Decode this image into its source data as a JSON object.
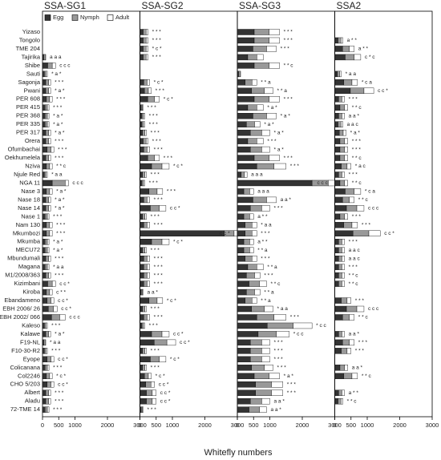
{
  "chart_data": {
    "type": "stacked-barh",
    "xlabel": "Whitefly numbers",
    "xlim": [
      0,
      3000
    ],
    "xticks": [
      0,
      500,
      1000,
      2000,
      3000
    ],
    "legend": [
      {
        "name": "Egg",
        "color": "#333333"
      },
      {
        "name": "Nymph",
        "color": "#999999"
      },
      {
        "name": "Adult",
        "color": "#ffffff"
      }
    ],
    "categories": [
      "Yizaso",
      "Tongolo",
      "TME 204",
      "Tajirika",
      "Shibe",
      "Sauti",
      "Sagonja",
      "Pwani",
      "PER 608",
      "PER 415",
      "PER 368",
      "PER 335",
      "PER 317",
      "Orera",
      "Ofumbachai",
      "Oekhumelela",
      "Nziva",
      "Njule Red",
      "NGA 11",
      "Nase 3",
      "Nase 18",
      "Nase 14",
      "Nase 1",
      "Nam 130",
      "Mkumbozi",
      "Mkumba",
      "MECU72",
      "Mbundumali",
      "Magana",
      "M1/2008/363",
      "Kizimbani",
      "Kiroba",
      "Ebandameno",
      "EBH 2006/ 26",
      "EBH 2002/ 066",
      "Kaleso",
      "Kalawe",
      "F19-NL",
      "F10-30-R2",
      "Eyope",
      "Colicanana",
      "Col2246",
      "CHO 5/203",
      "Albert",
      "Aladu",
      "72-TME 14"
    ],
    "panels": [
      {
        "title": "SSA-SG1",
        "series": [
          {
            "values": [
              0,
              0,
              0,
              40,
              160,
              60,
              100,
              100,
              120,
              80,
              80,
              80,
              100,
              100,
              140,
              100,
              120,
              60,
              300,
              120,
              100,
              100,
              80,
              120,
              120,
              80,
              80,
              100,
              80,
              100,
              160,
              120,
              140,
              180,
              280,
              60,
              100,
              40,
              60,
              140,
              80,
              120,
              140,
              100,
              100,
              80
            ]
          },
          {
            "values": [
              0,
              0,
              0,
              40,
              140,
              50,
              90,
              90,
              100,
              70,
              70,
              70,
              90,
              90,
              120,
              90,
              100,
              50,
              400,
              100,
              90,
              90,
              70,
              100,
              100,
              70,
              70,
              90,
              70,
              90,
              140,
              100,
              120,
              160,
              250,
              50,
              90,
              40,
              50,
              120,
              70,
              100,
              120,
              90,
              90,
              70
            ]
          },
          {
            "values": [
              0,
              0,
              0,
              20,
              100,
              40,
              60,
              60,
              80,
              50,
              50,
              50,
              60,
              60,
              90,
              60,
              80,
              40,
              100,
              80,
              60,
              60,
              50,
              80,
              80,
              50,
              50,
              60,
              50,
              60,
              100,
              80,
              90,
              110,
              170,
              40,
              60,
              20,
              40,
              90,
              50,
              80,
              90,
              60,
              60,
              50
            ]
          }
        ],
        "annotations": [
          null,
          null,
          null,
          "a a a",
          "c c c",
          "* a *",
          "* * *",
          "* a *",
          "* * *",
          "* * *",
          "* a *",
          "* a *",
          "* a *",
          "* * *",
          "* * *",
          "* * *",
          "* * c",
          "* a a",
          "c c c",
          "* a *",
          "* a *",
          "* a *",
          "* * *",
          "* * *",
          "* * *",
          "* a *",
          "* a *",
          "* * *",
          "* a a",
          "* * *",
          "c c *",
          "c * *",
          "c c *",
          "c c *",
          "c c c",
          "* * *",
          "* a *",
          "* a a",
          "* * *",
          "c c *",
          "* * *",
          "* c *",
          "c c *",
          "* * *",
          "* * *",
          "* * *"
        ]
      },
      {
        "title": "SSA-SG2",
        "series": [
          {
            "values": [
              100,
              100,
              100,
              100,
              0,
              0,
              120,
              140,
              240,
              40,
              60,
              60,
              80,
              100,
              120,
              240,
              360,
              80,
              60,
              280,
              120,
              320,
              80,
              120,
              2600,
              360,
              80,
              120,
              120,
              120,
              120,
              40,
              280,
              80,
              120,
              60,
              360,
              440,
              80,
              320,
              80,
              140,
              180,
              200,
              200,
              40
            ]
          },
          {
            "values": [
              90,
              90,
              90,
              90,
              0,
              0,
              100,
              120,
              210,
              40,
              50,
              50,
              70,
              90,
              100,
              210,
              320,
              70,
              50,
              250,
              100,
              280,
              70,
              100,
              300,
              320,
              70,
              100,
              100,
              100,
              100,
              40,
              250,
              70,
              100,
              50,
              320,
              390,
              70,
              280,
              70,
              120,
              160,
              180,
              180,
              40
            ]
          },
          {
            "values": [
              60,
              60,
              60,
              60,
              0,
              0,
              80,
              90,
              150,
              20,
              40,
              40,
              50,
              60,
              80,
              150,
              220,
              50,
              40,
              170,
              80,
              200,
              50,
              80,
              100,
              220,
              50,
              80,
              80,
              80,
              80,
              20,
              170,
              50,
              80,
              40,
              220,
              270,
              50,
              200,
              50,
              90,
              110,
              120,
              120,
              20
            ]
          }
        ],
        "annotations": [
          "* * *",
          "* * *",
          "* c *",
          "* * *",
          null,
          null,
          "* c *",
          "* * *",
          "* c *",
          "* * *",
          "* * *",
          "* * *",
          "* * *",
          "* * *",
          "* * *",
          "* * *",
          "* c *",
          "* * *",
          "* * *",
          "* * *",
          "* * *",
          "c c *",
          "* * *",
          "* * *",
          "c c *",
          "* c *",
          "* * *",
          "* * *",
          "* * *",
          "* * *",
          "* * *",
          "a a *",
          "* c *",
          "* * *",
          "* * *",
          "* * *",
          "c c *",
          "c c *",
          "* * *",
          "* c *",
          "* * *",
          "* c *",
          "c c *",
          "c c *",
          "c c *",
          "* * *"
        ]
      },
      {
        "title": "SSA-SG3",
        "series": [
          {
            "values": [
              520,
              520,
              480,
              320,
              520,
              40,
              240,
              440,
              520,
              320,
              480,
              280,
              400,
              320,
              400,
              520,
              600,
              120,
              2300,
              200,
              480,
              400,
              200,
              240,
              240,
              200,
              200,
              240,
              320,
              280,
              360,
              280,
              240,
              440,
              600,
              920,
              640,
              400,
              400,
              400,
              440,
              520,
              560,
              560,
              400,
              360
            ]
          },
          {
            "values": [
              460,
              460,
              420,
              280,
              460,
              40,
              210,
              390,
              460,
              280,
              420,
              250,
              350,
              280,
              350,
              460,
              530,
              100,
              500,
              180,
              420,
              350,
              180,
              210,
              210,
              180,
              180,
              210,
              280,
              250,
              320,
              250,
              210,
              390,
              530,
              800,
              560,
              350,
              350,
              350,
              390,
              460,
              490,
              490,
              350,
              320
            ]
          },
          {
            "values": [
              320,
              320,
              300,
              200,
              320,
              20,
              150,
              270,
              320,
              200,
              300,
              170,
              250,
              200,
              250,
              320,
              370,
              80,
              200,
              120,
              300,
              250,
              120,
              150,
              150,
              120,
              120,
              150,
              200,
              170,
              220,
              170,
              150,
              270,
              370,
              580,
              400,
              250,
              250,
              250,
              270,
              320,
              350,
              350,
              250,
              220
            ]
          }
        ],
        "annotations": [
          "* * *",
          "* * *",
          "* * *",
          null,
          "* * c",
          null,
          "* * a",
          "* * a",
          "* * *",
          "* a *",
          "* a *",
          "* a *",
          "* a *",
          "* * *",
          "* a *",
          "* * *",
          "* * *",
          "a a a",
          "c c c",
          "a a a",
          "a a *",
          "* * *",
          "a * *",
          "* a a",
          "* * *",
          "a * *",
          "* * a",
          "* * *",
          "* * a",
          "* * *",
          "* * c",
          "* * a",
          "* * a",
          "* a a",
          "* * *",
          "* c c",
          "* c c",
          "* * *",
          "* * *",
          "* * *",
          "* * *",
          "* a *",
          "* * *",
          "* * *",
          "a a *",
          "a a *"
        ]
      },
      {
        "title": "SSA2",
        "series": [
          {
            "values": [
              0,
              100,
              240,
              320,
              0,
              80,
              280,
              480,
              120,
              160,
              120,
              100,
              140,
              160,
              160,
              160,
              200,
              120,
              160,
              320,
              240,
              360,
              160,
              280,
              560,
              120,
              120,
              120,
              120,
              120,
              120,
              0,
              200,
              360,
              240,
              0,
              120,
              240,
              200,
              0,
              160,
              280,
              0,
              120,
              100,
              0
            ]
          },
          {
            "values": [
              0,
              90,
              210,
              280,
              0,
              70,
              250,
              420,
              100,
              140,
              100,
              90,
              120,
              140,
              140,
              140,
              180,
              100,
              140,
              280,
              210,
              320,
              140,
              250,
              490,
              100,
              100,
              100,
              100,
              100,
              100,
              0,
              180,
              320,
              210,
              0,
              100,
              210,
              180,
              0,
              140,
              250,
              0,
              100,
              90,
              0
            ]
          },
          {
            "values": [
              0,
              60,
              150,
              200,
              0,
              50,
              170,
              300,
              80,
              100,
              80,
              60,
              90,
              100,
              100,
              100,
              120,
              80,
              100,
              200,
              150,
              220,
              100,
              170,
              350,
              80,
              80,
              80,
              80,
              80,
              80,
              0,
              120,
              220,
              150,
              0,
              80,
              150,
              120,
              0,
              100,
              170,
              0,
              80,
              60,
              0
            ]
          }
        ],
        "annotations": [
          null,
          "a * *",
          "a * *",
          "c * c",
          null,
          "* a a",
          "* c a",
          "c c *",
          "* * *",
          "* * c",
          "a a *",
          "a a c",
          "* a *",
          "* * *",
          "* * *",
          "* * c",
          "* a c",
          "* * *",
          "* * c",
          "* c a",
          "* * c",
          "c c c",
          "* * *",
          "* * *",
          "c c *",
          "* * *",
          "a a c",
          "a a c",
          "* * *",
          "* * c",
          "* * c",
          null,
          "* * *",
          "c c c",
          "* * c",
          null,
          "a a *",
          "* * *",
          "* * *",
          null,
          "a a *",
          "* * c",
          null,
          "a * *",
          "* * c",
          null
        ]
      }
    ]
  }
}
